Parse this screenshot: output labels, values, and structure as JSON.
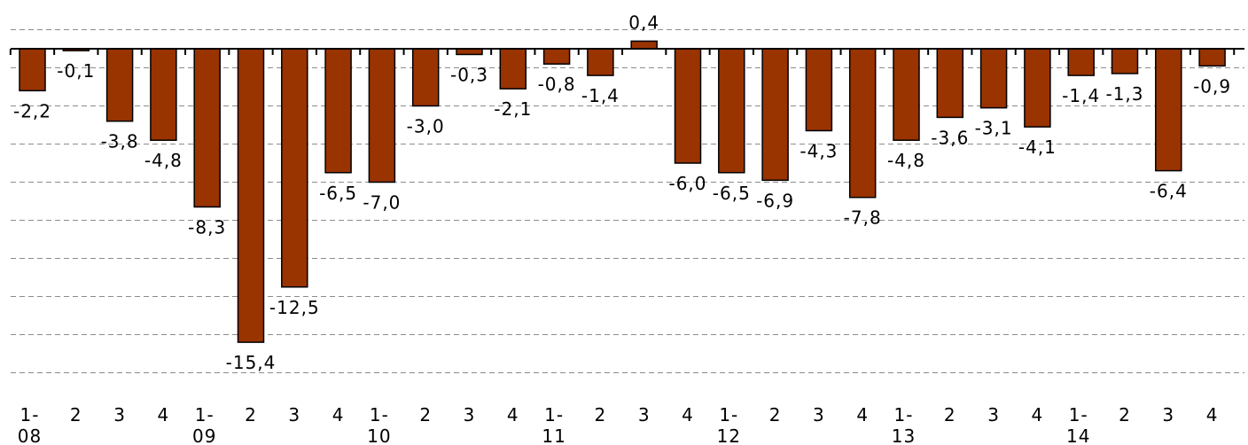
{
  "chart_data": {
    "type": "bar",
    "title": "",
    "xlabel": "",
    "ylabel": "",
    "ylim": [
      -17,
      1
    ],
    "gridlines": [
      1,
      0,
      -1,
      -3,
      -5,
      -7,
      -9,
      -11,
      -13,
      -15,
      -17
    ],
    "grid": true,
    "legend": "none",
    "categories": [
      [
        "1-",
        "08"
      ],
      [
        "2"
      ],
      [
        "3"
      ],
      [
        "4"
      ],
      [
        "1-",
        "09"
      ],
      [
        "2"
      ],
      [
        "3"
      ],
      [
        "4"
      ],
      [
        "1-",
        "10"
      ],
      [
        "2"
      ],
      [
        "3"
      ],
      [
        "4"
      ],
      [
        "1-",
        "11"
      ],
      [
        "2"
      ],
      [
        "3"
      ],
      [
        "4"
      ],
      [
        "1-",
        "12"
      ],
      [
        "2"
      ],
      [
        "3"
      ],
      [
        "4"
      ],
      [
        "1-",
        "13"
      ],
      [
        "2"
      ],
      [
        "3"
      ],
      [
        "4"
      ],
      [
        "1-",
        "14"
      ],
      [
        "2"
      ],
      [
        "3"
      ],
      [
        "4"
      ]
    ],
    "values": [
      -2.2,
      -0.1,
      -3.8,
      -4.8,
      -8.3,
      -15.4,
      -12.5,
      -6.5,
      -7.0,
      -3.0,
      -0.3,
      -2.1,
      -0.8,
      -1.4,
      0.4,
      -6.0,
      -6.5,
      -6.9,
      -4.3,
      -7.8,
      -4.8,
      -3.6,
      -3.1,
      -4.1,
      -1.4,
      -1.3,
      -6.4,
      -0.9
    ],
    "labels": [
      "-2,2",
      "-0,1",
      "-3,8",
      "-4,8",
      "-8,3",
      "-15,4",
      "-12,5",
      "-6,5",
      "-7,0",
      "-3,0",
      "-0,3",
      "-2,1",
      "-0,8",
      "-1,4",
      "0,4",
      "-6,0",
      "-6,5",
      "-6,9",
      "-4,3",
      "-7,8",
      "-4,8",
      "-3,6",
      "-3,1",
      "-4,1",
      "-1,4",
      "-1,3",
      "-6,4",
      "-0,9"
    ],
    "colors": {
      "bar": "#993300",
      "grid": "#8c8c8c",
      "axis": "#000000"
    }
  }
}
